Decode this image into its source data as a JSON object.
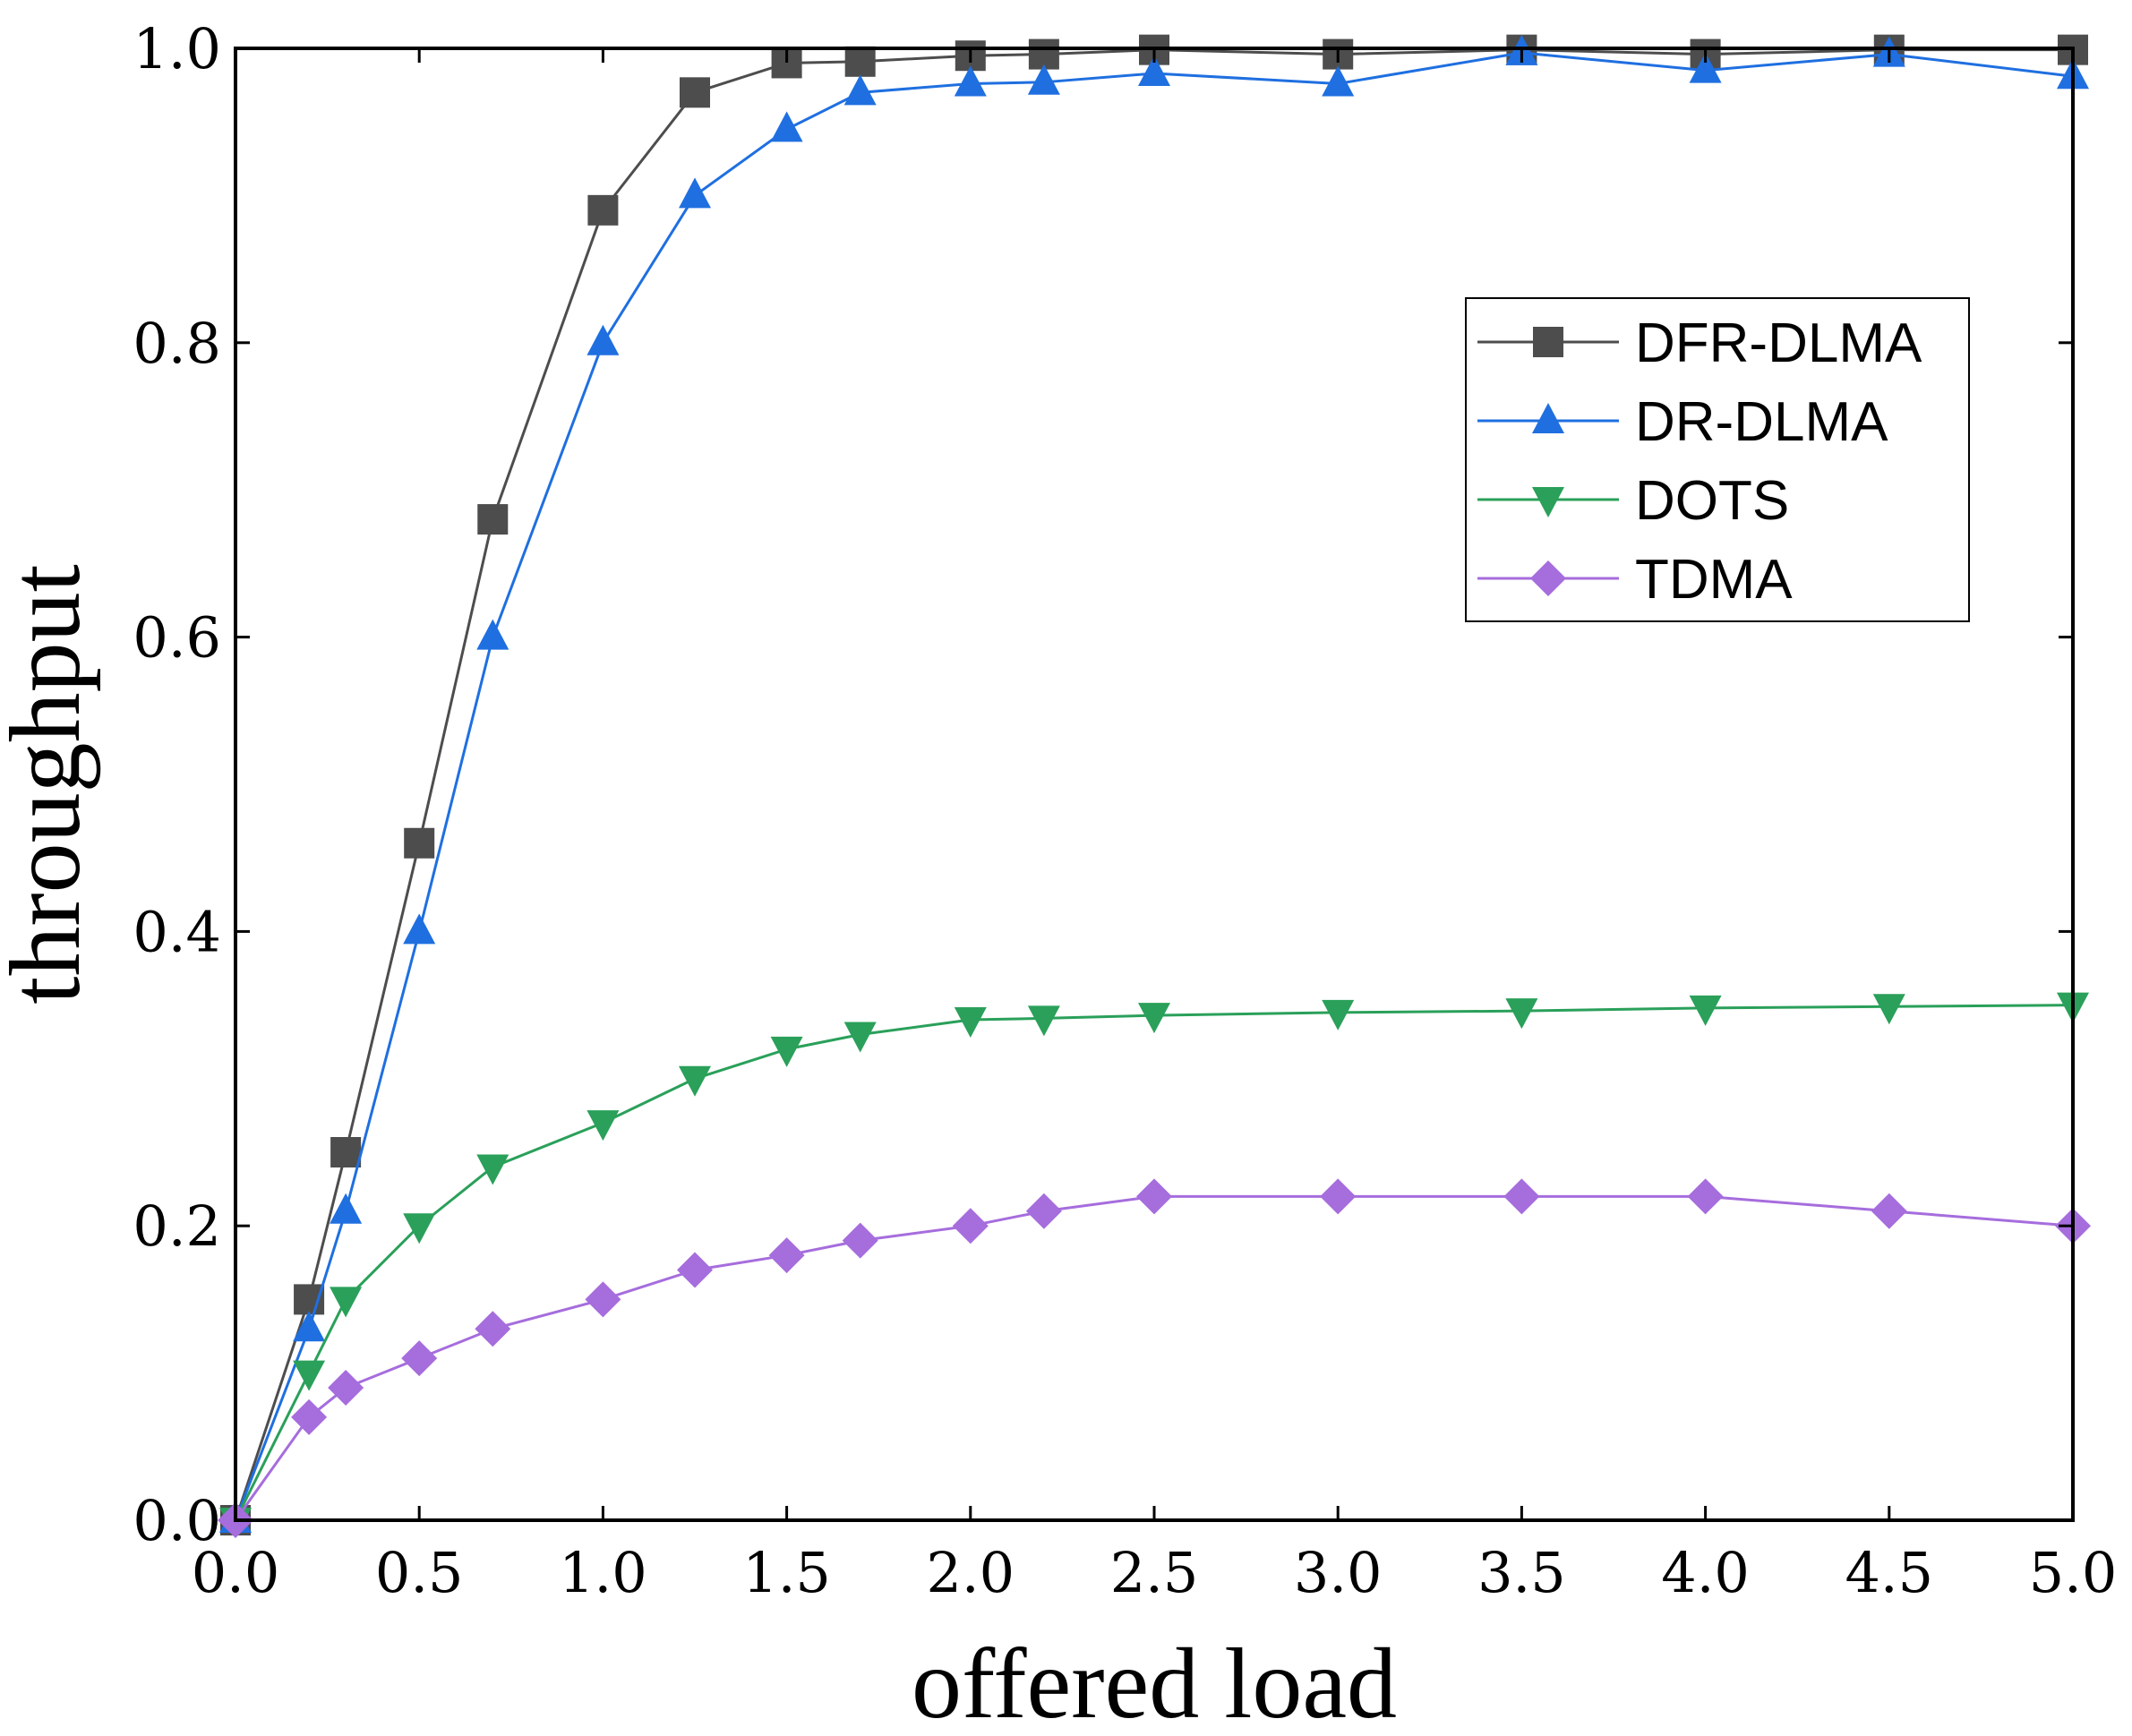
{
  "chart_data": {
    "type": "line",
    "title": "",
    "xlabel": "offered load",
    "ylabel": "throughput",
    "xlim": [
      0,
      5
    ],
    "ylim": [
      0,
      1
    ],
    "xticks": [
      "0.0",
      "0.5",
      "1.0",
      "1.5",
      "2.0",
      "2.5",
      "3.0",
      "3.5",
      "4.0",
      "4.5",
      "5.0"
    ],
    "xtick_values": [
      0,
      0.5,
      1.0,
      1.5,
      2.0,
      2.5,
      3.0,
      3.5,
      4.0,
      4.5,
      5.0
    ],
    "yticks": [
      "0.0",
      "0.2",
      "0.4",
      "0.6",
      "0.8",
      "1.0"
    ],
    "ytick_values": [
      0,
      0.2,
      0.4,
      0.6,
      0.8,
      1.0
    ],
    "grid": false,
    "legend_position": "upper-right",
    "x": [
      0,
      0.2,
      0.3,
      0.5,
      0.7,
      1.0,
      1.25,
      1.5,
      1.7,
      2.0,
      2.2,
      2.5,
      3.0,
      3.5,
      4.0,
      4.5,
      5.0
    ],
    "series": [
      {
        "name": "DFR-DLMA",
        "color": "#4d4d4d",
        "marker": "square",
        "values": [
          0.0,
          0.15,
          0.25,
          0.46,
          0.68,
          0.89,
          0.97,
          0.99,
          0.991,
          0.995,
          0.996,
          0.999,
          0.996,
          0.999,
          0.996,
          0.999,
          0.999
        ]
      },
      {
        "name": "DR-DLMA",
        "color": "#1f6fe0",
        "marker": "triangle-up",
        "values": [
          0.0,
          0.13,
          0.21,
          0.4,
          0.6,
          0.8,
          0.9,
          0.945,
          0.97,
          0.976,
          0.977,
          0.983,
          0.976,
          0.997,
          0.985,
          0.996,
          0.981
        ]
      },
      {
        "name": "DOTS",
        "color": "#2aa05a",
        "marker": "triangle-down",
        "values": [
          0.0,
          0.1,
          0.15,
          0.2,
          0.24,
          0.27,
          0.3,
          0.32,
          0.33,
          0.34,
          0.341,
          0.343,
          0.345,
          0.346,
          0.348,
          0.349,
          0.35
        ]
      },
      {
        "name": "TDMA",
        "color": "#a66ddd",
        "marker": "diamond",
        "values": [
          0.0,
          0.07,
          0.09,
          0.11,
          0.13,
          0.15,
          0.17,
          0.18,
          0.19,
          0.2,
          0.21,
          0.22,
          0.22,
          0.22,
          0.22,
          0.21,
          0.2
        ]
      }
    ]
  }
}
